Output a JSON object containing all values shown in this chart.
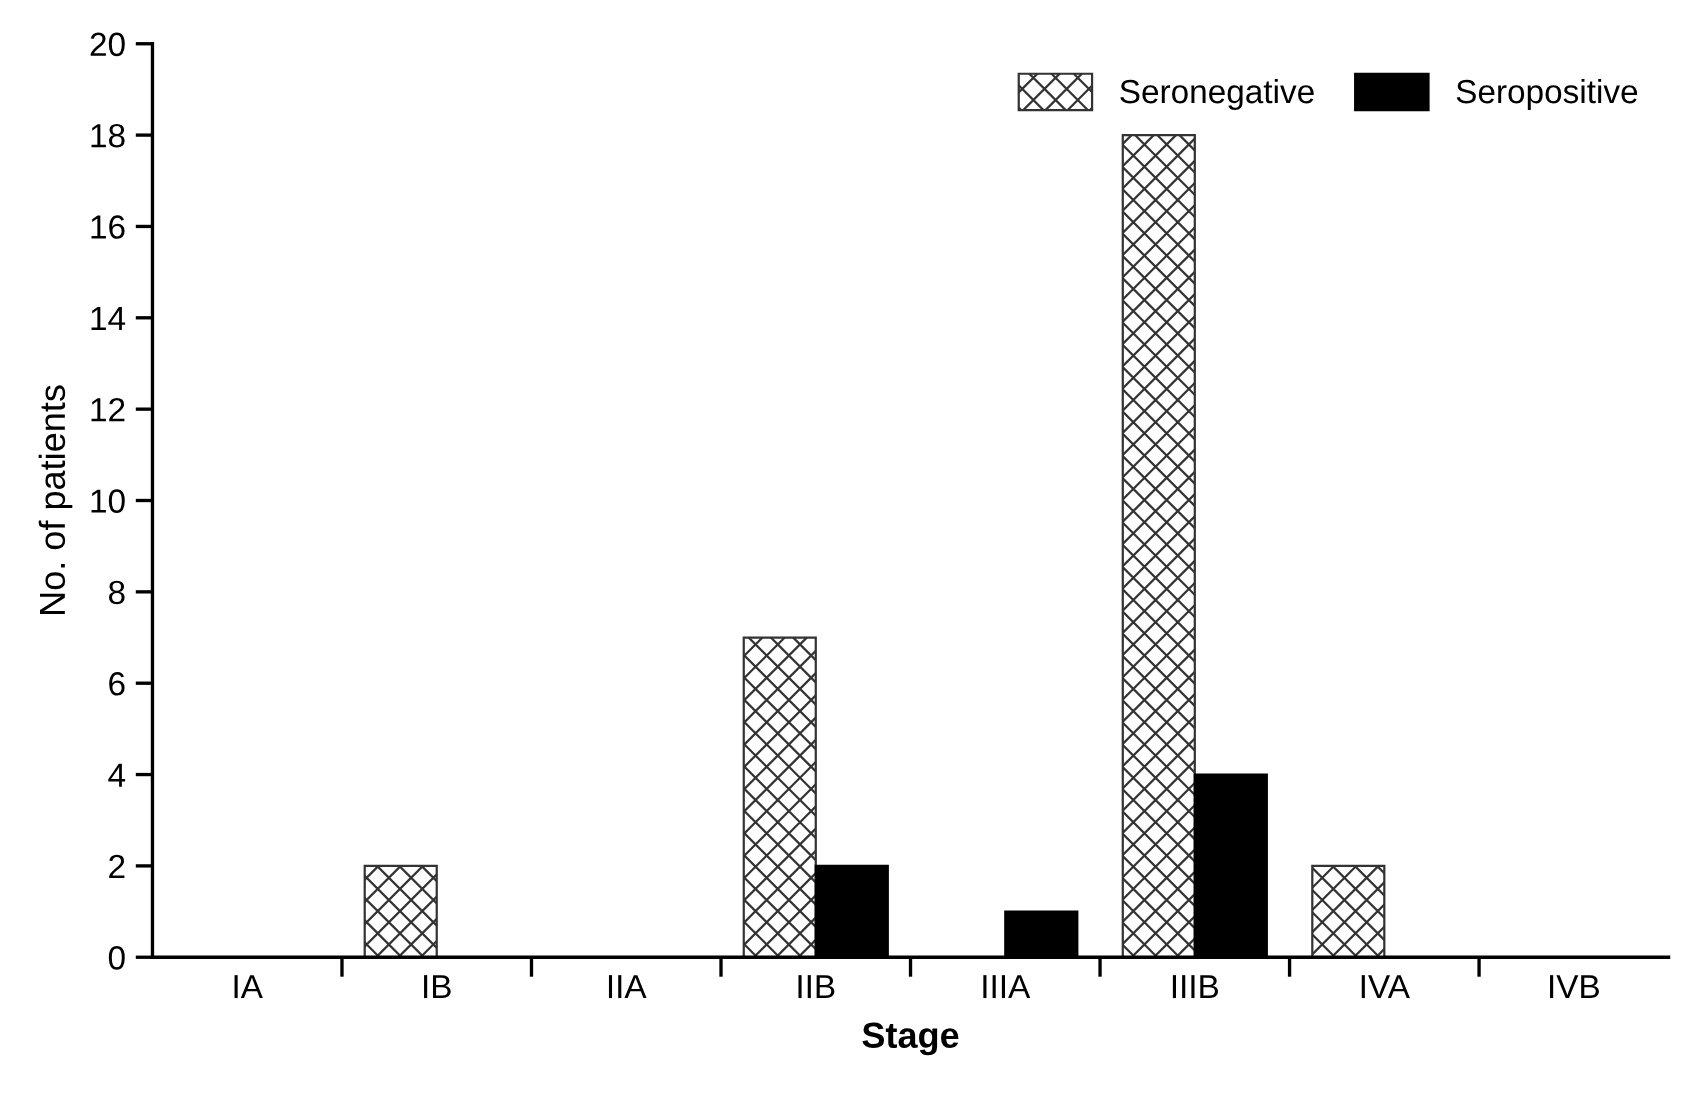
{
  "chart_data": {
    "type": "bar",
    "xlabel": "Stage",
    "ylabel": "No. of patients",
    "categories": [
      "IA",
      "IB",
      "IIA",
      "IIB",
      "IIIA",
      "IIIB",
      "IVA",
      "IVB"
    ],
    "series": [
      {
        "name": "Seronegative",
        "color": "#333333",
        "values": [
          0,
          2,
          0,
          7,
          0,
          18,
          2,
          0
        ]
      },
      {
        "name": "Seropositive",
        "color": "#000000",
        "values": [
          0,
          0,
          0,
          2,
          1,
          4,
          0,
          0
        ]
      }
    ],
    "ylim": [
      0,
      20
    ],
    "yticks": [
      0,
      2,
      4,
      6,
      8,
      10,
      12,
      14,
      16,
      18,
      20
    ],
    "grid": false,
    "legend": "top right"
  }
}
